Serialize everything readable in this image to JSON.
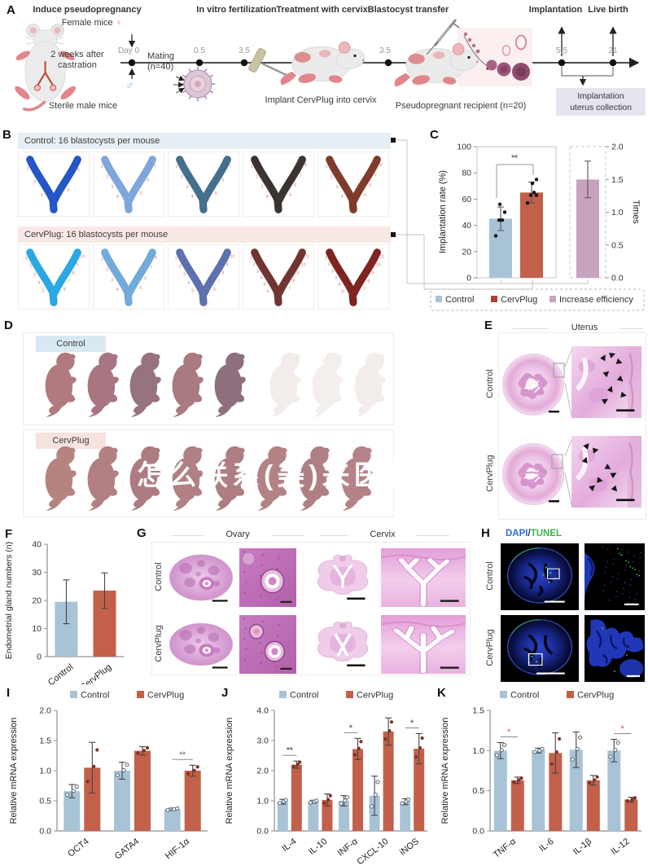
{
  "colors": {
    "control": "#a9c3d6",
    "cervplug": "#c2604a",
    "cervplug_dark": "#b0402e",
    "efficiency": "#c9a2bf",
    "header_blue": "#e7eff5",
    "header_pink": "#f9e9e6",
    "site_number": "#e2796a",
    "dapi": "#2f6fd8",
    "tunel": "#3cb549",
    "note_box": "#e6e5ef",
    "female": "#e87d9a",
    "male": "#6bb8dc"
  },
  "panels": {
    "A": {
      "label": "A",
      "stages": [
        "Induce pseudopregnancy",
        "In vitro fertilization",
        "Treatment with cervix",
        "Blastocyst transfer",
        "Implantation",
        "Live birth"
      ],
      "ticks": [
        "Day 0",
        "0.5",
        "3.5",
        "3.5",
        "5.5",
        "21"
      ],
      "female_mice": "Female mice",
      "female_symbol": "♀",
      "male_symbol": "♂",
      "castration_1": "2 weeks after",
      "castration_2": "castration",
      "sterile_male": "Sterile male mice",
      "mating_1": "Mating",
      "mating_2": "(n=40)",
      "implant": "Implant CervPlug into cervix",
      "recipient": "Pseudopregnant recipient (n=20)",
      "collection_1": "Implantation",
      "collection_2": "uterus collection"
    },
    "B": {
      "label": "B",
      "control_header": "Control: 16 blastocysts per mouse",
      "cervplug_header": "CervPlug: 16 blastocysts per mouse",
      "control_uteri": [
        "#2456c8",
        "#7fa6da",
        "#44708d",
        "#3b3431",
        "#7e3b2b"
      ],
      "cervplug_uteri": [
        "#2aa8e2",
        "#72aada",
        "#5d70b0",
        "#703531",
        "#7e2521"
      ],
      "control_counts": [
        5,
        7,
        7,
        8,
        8
      ],
      "cervplug_counts": [
        10,
        8,
        10,
        11,
        11
      ],
      "site_numbers": [
        "1",
        "2",
        "3",
        "4",
        "5",
        "6",
        "7",
        "8",
        "9",
        "10",
        "11"
      ]
    },
    "D": {
      "label": "D",
      "control": "Control",
      "cervplug": "CervPlug",
      "control_pups": [
        "#b17a7e",
        "#a87680",
        "#97727f",
        "#a97a80",
        "#8d6f7d",
        "#f2ecea",
        "#f4eeec",
        "#f3edeb"
      ],
      "cervplug_pups": [
        "#b5847f",
        "#b28082",
        "#ac7c80",
        "#b08084",
        "#ae7e82",
        "#b28285",
        "#b07f83",
        "#b48388"
      ],
      "watermark": "怎么联系(美)来医程?变"
    },
    "E": {
      "label": "E",
      "title": "Uterus",
      "row1": "Control",
      "row2": "CervPlug"
    },
    "G": {
      "label": "G",
      "col1": "Ovary",
      "col2": "Cervix",
      "row1": "Control",
      "row2": "CervPlug"
    },
    "H": {
      "label": "H",
      "dapi": "DAPI",
      "sep": "/",
      "tunel": "TUNEL",
      "row1": "Control",
      "row2": "CervPlug"
    }
  },
  "chart_data": [
    {
      "id": "C",
      "type": "bar",
      "panel_label": "C",
      "ylabel": "Implantation rate (%)",
      "ylim": [
        0,
        100
      ],
      "yticks": [
        "0",
        "20",
        "40",
        "60",
        "80",
        "100"
      ],
      "y2label": "Times",
      "y2lim": [
        0,
        2
      ],
      "y2ticks": [
        "0.0",
        "0.5",
        "1.0",
        "1.5",
        "2.0"
      ],
      "categories": [
        "Control",
        "CervPlug"
      ],
      "values": [
        45,
        65
      ],
      "errs": [
        9,
        8
      ],
      "points": {
        "Control": [
          32,
          44,
          44,
          50,
          56
        ],
        "CervPlug": [
          57,
          63,
          63,
          65,
          72,
          75
        ]
      },
      "bar2": {
        "name": "Increase efficiency",
        "value": 1.5,
        "err": 0.28
      },
      "sig": "**",
      "legend": [
        "Control",
        "CervPlug",
        "Increase efficiency"
      ]
    },
    {
      "id": "F",
      "type": "bar",
      "panel_label": "F",
      "ylabel": "Endometrial gland numbers (n)",
      "ylim": [
        0,
        40
      ],
      "yticks": [
        "0",
        "10",
        "20",
        "30",
        "40"
      ],
      "categories": [
        "Control",
        "CervPlug"
      ],
      "values": [
        19.5,
        23.5
      ],
      "errs": [
        7.8,
        6.3
      ],
      "bar_colors": [
        "control",
        "cervplug"
      ]
    },
    {
      "id": "I",
      "type": "grouped_bar",
      "panel_label": "I",
      "ylabel": "Relative mRNA expression",
      "ylim": [
        0,
        2
      ],
      "yticks": [
        "0.0",
        "0.5",
        "1.0",
        "1.5",
        "2.0"
      ],
      "categories": [
        "OCT4",
        "GATA4",
        "HIF-1α"
      ],
      "series": [
        {
          "name": "Control",
          "values": [
            0.66,
            1.0,
            0.36
          ],
          "errs": [
            0.11,
            0.14,
            0.02
          ]
        },
        {
          "name": "CervPlug",
          "values": [
            1.05,
            1.33,
            1.0
          ],
          "errs": [
            0.42,
            0.07,
            0.09
          ]
        }
      ],
      "sig": [
        null,
        null,
        "**"
      ]
    },
    {
      "id": "J",
      "type": "grouped_bar",
      "panel_label": "J",
      "ylabel": "Relative mRNA expression",
      "ylim": [
        0,
        4
      ],
      "yticks": [
        "0.0",
        "1.0",
        "2.0",
        "3.0",
        "4.0"
      ],
      "categories": [
        "IL-4",
        "IL-10",
        "INF-α",
        "CXCL-10",
        "iNOS"
      ],
      "series": [
        {
          "name": "Control",
          "values": [
            0.97,
            0.97,
            1.0,
            1.17,
            0.97
          ],
          "errs": [
            0.08,
            0.05,
            0.17,
            0.65,
            0.1
          ]
        },
        {
          "name": "CervPlug",
          "values": [
            2.2,
            1.03,
            2.72,
            3.3,
            2.73
          ],
          "errs": [
            0.12,
            0.2,
            0.35,
            0.45,
            0.5
          ]
        }
      ],
      "sig": [
        "**",
        null,
        "*",
        null,
        "*"
      ]
    },
    {
      "id": "K",
      "type": "grouped_bar",
      "panel_label": "K",
      "ylabel": "Relative mRNA expression",
      "ylim": [
        0,
        1.5
      ],
      "yticks": [
        "0.0",
        "0.5",
        "1.0",
        "1.5"
      ],
      "categories": [
        "TNF-α",
        "IL-6",
        "IL-1β",
        "IL-12"
      ],
      "series": [
        {
          "name": "Control",
          "values": [
            1.0,
            1.0,
            1.01,
            1.0
          ],
          "errs": [
            0.1,
            0.03,
            0.22,
            0.14
          ]
        },
        {
          "name": "CervPlug",
          "values": [
            0.63,
            0.97,
            0.63,
            0.39
          ],
          "errs": [
            0.04,
            0.25,
            0.06,
            0.03
          ]
        }
      ],
      "sig": [
        "*",
        null,
        null,
        "*"
      ]
    }
  ]
}
